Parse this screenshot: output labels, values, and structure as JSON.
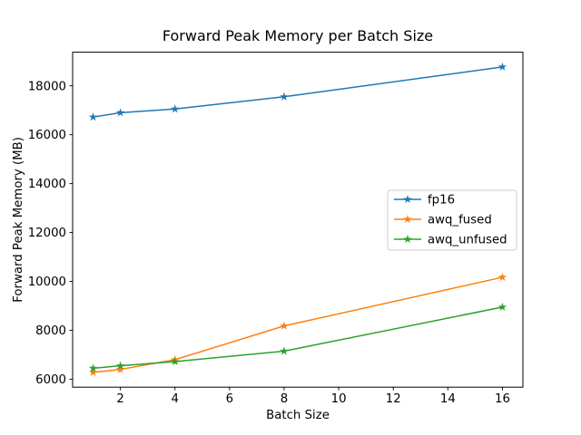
{
  "figure": {
    "background": "#ffffff"
  },
  "chart_data": {
    "type": "line",
    "title": "Forward Peak Memory per Batch Size",
    "xlabel": "Batch Size",
    "ylabel": "Forward Peak Memory (MB)",
    "x": [
      1,
      2,
      4,
      8,
      16
    ],
    "series": [
      {
        "name": "fp16",
        "color": "#1f77b4",
        "values": [
          16720,
          16900,
          17050,
          17550,
          18770
        ]
      },
      {
        "name": "awq_fused",
        "color": "#ff7f0e",
        "values": [
          6280,
          6400,
          6800,
          8180,
          10170
        ]
      },
      {
        "name": "awq_unfused",
        "color": "#2ca02c",
        "values": [
          6450,
          6550,
          6720,
          7150,
          8950
        ]
      }
    ],
    "marker": "star",
    "line_width": 1.5,
    "xlim": [
      0.25,
      16.75
    ],
    "ylim": [
      5677,
      19373
    ],
    "xticks": [
      2,
      4,
      6,
      8,
      10,
      12,
      14,
      16
    ],
    "yticks": [
      6000,
      8000,
      10000,
      12000,
      14000,
      16000,
      18000
    ],
    "grid": false,
    "legend": {
      "position": "center-right",
      "items": [
        "fp16",
        "awq_fused",
        "awq_unfused"
      ],
      "border_color": "#cccccc",
      "background": "#ffffff"
    },
    "colors": {
      "axis": "#000000",
      "text": "#000000"
    }
  }
}
